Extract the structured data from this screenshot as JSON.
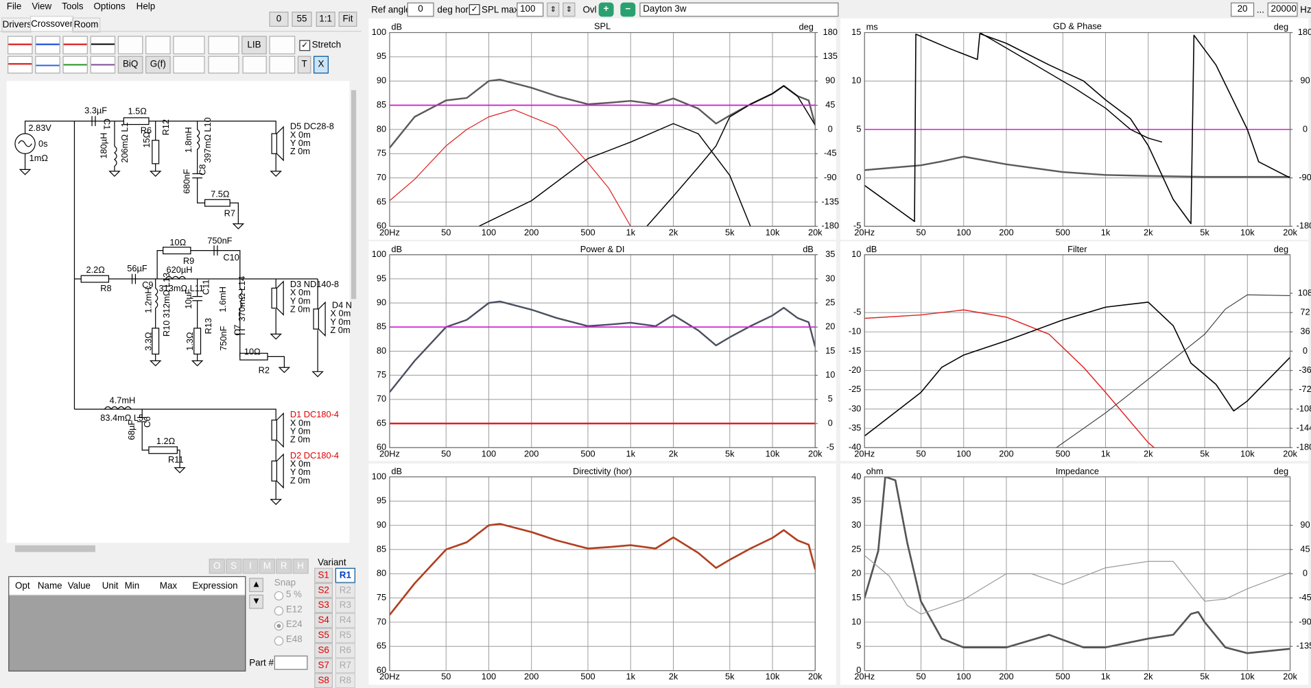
{
  "menu": [
    "File",
    "View",
    "Tools",
    "Options",
    "Help"
  ],
  "tabs": [
    "Drivers",
    "Crossover",
    "Room"
  ],
  "zoom": [
    "0",
    "55",
    "1:1",
    "Fit"
  ],
  "toolbar": {
    "lib": "LIB",
    "biq": "BiQ",
    "gf": "G(f)",
    "t": "T",
    "x": "X",
    "stretch": "Stretch"
  },
  "topbar": {
    "ref_angle_label": "Ref angle",
    "ref_angle": "0",
    "deg_hor": "deg hor",
    "spl_max_label": "SPL max",
    "spl_max": "100",
    "ovl": "Ovl",
    "project": "Dayton 3w",
    "f_min": "20",
    "ellipsis": "...",
    "f_max": "20000",
    "hz": "Hz"
  },
  "optimizer_buttons": [
    "O",
    "S",
    "I",
    "M",
    "R",
    "H"
  ],
  "table_headers": [
    "Opt",
    "Name",
    "Value",
    "Unit",
    "Min",
    "Max",
    "Expression"
  ],
  "snap": {
    "label": "Snap",
    "options": [
      "5 %",
      "E12",
      "E24",
      "E48"
    ]
  },
  "variant": {
    "label": "Variant",
    "s": [
      "S1",
      "S2",
      "S3",
      "S4",
      "S5",
      "S6",
      "S7",
      "S8"
    ],
    "r": [
      "R1",
      "R2",
      "R3",
      "R4",
      "R5",
      "R6",
      "R7",
      "R8"
    ]
  },
  "part_label": "Part #",
  "schematic": {
    "labels": [
      "2.83V",
      "0s",
      "1mΩ",
      "3.3µF",
      "C1",
      "1.5Ω",
      "R6",
      "180µH",
      "206mΩ L1",
      "15Ω",
      "R12",
      "1.8mH",
      "397mΩ L10",
      "C8",
      "680nF",
      "7.5Ω",
      "R7",
      "D5 DC28-8",
      "X 0m",
      "Y 0m",
      "Z 0m",
      "10Ω",
      "R9",
      "750nF",
      "C10",
      "2.2Ω",
      "R8",
      "56µF",
      "C9",
      "620µH",
      "313mΩ L11",
      "C11",
      "10µF",
      "1.6mH",
      "370mΩ L14",
      "1.2mH",
      "R10 312mΩ L13",
      "3.3Ω",
      "1.3Ω",
      "R13",
      "750nF",
      "C7",
      "10Ω",
      "R2",
      "D3 ND140-8",
      "X 0m",
      "Y 0m",
      "Z 0m",
      "D4 N",
      "X 0m",
      "Y 0m",
      "Z 0m",
      "4.7mH",
      "83.4mΩ L5",
      "C6",
      "68µF",
      "1.2Ω",
      "R11",
      "D1 DC180-4",
      "X 0m",
      "Y 0m",
      "Z 0m",
      "D2 DC180-4",
      "X 0m",
      "Y 0m",
      "Z 0m"
    ]
  },
  "plots": [
    {
      "title": "SPL",
      "ylabel": "dB",
      "y2label": "deg",
      "ylim": [
        60,
        100
      ],
      "yticks": [
        60,
        65,
        70,
        75,
        80,
        85,
        90,
        95,
        100
      ],
      "y2lim": [
        -180,
        180
      ],
      "y2ticks": [
        -180,
        -135,
        -90,
        -45,
        0,
        45,
        90,
        135,
        180
      ],
      "xlim": [
        20,
        20000
      ],
      "log_x": true,
      "xticks": [
        {
          "value": 20,
          "label": "20Hz"
        },
        50,
        100,
        200,
        500,
        {
          "value": 1000,
          "label": "1k"
        },
        {
          "value": 2000,
          "label": "2k"
        },
        {
          "value": 5000,
          "label": "5k"
        },
        {
          "value": 10000,
          "label": "10k"
        },
        {
          "value": 20000,
          "label": "20k"
        }
      ],
      "curves": [
        {
          "color": "#5a5a5a",
          "width": 2,
          "x": [
            20,
            30,
            50,
            70,
            100,
            120,
            200,
            300,
            500,
            700,
            1000,
            1500,
            2000,
            3000,
            4000,
            5000,
            7000,
            10000,
            12000,
            15000,
            18000,
            20000
          ],
          "values": [
            76.2,
            82.6,
            86,
            86.5,
            90,
            90.3,
            88.6,
            86.9,
            85.2,
            85.5,
            85.9,
            85.2,
            86.4,
            84.3,
            81.2,
            82.9,
            85.2,
            87.4,
            89,
            86.9,
            86,
            80.9
          ]
        },
        {
          "color": "#e02020",
          "width": 1,
          "x": [
            20,
            30,
            50,
            70,
            100,
            150,
            200,
            300,
            500,
            700,
            1000
          ],
          "values": [
            65.3,
            69.7,
            76.6,
            80,
            82.6,
            84.1,
            82.6,
            80.5,
            73.1,
            67.9,
            60
          ]
        },
        {
          "color": "#000000",
          "width": 1.2,
          "x": [
            85,
            200,
            500,
            1000,
            2000,
            3000,
            5000,
            7000
          ],
          "values": [
            60,
            65.3,
            74,
            77.4,
            81.2,
            79.1,
            70.5,
            60
          ]
        },
        {
          "color": "#000000",
          "width": 1.2,
          "x": [
            1300,
            2000,
            3000,
            4000,
            5000,
            7000,
            10000,
            12000,
            15000,
            20000
          ],
          "values": [
            60,
            66.2,
            72.2,
            76.6,
            82.6,
            85.2,
            87.4,
            89,
            86.9,
            80.9
          ]
        },
        {
          "color": "#d020d0",
          "width": 1.5,
          "x": [
            20,
            20000
          ],
          "values": [
            85,
            85
          ]
        }
      ]
    },
    {
      "title": "GD & Phase",
      "ylabel": "ms",
      "y2label": "deg",
      "ylim": [
        -5,
        15
      ],
      "yticks": [
        -5,
        0,
        5,
        10,
        15
      ],
      "y2lim": [
        -180,
        180
      ],
      "y2ticks": [
        -180,
        -90,
        0,
        90,
        180
      ],
      "xlim": [
        20,
        20000
      ],
      "log_x": true,
      "xticks": [
        {
          "value": 20,
          "label": "20Hz"
        },
        50,
        100,
        200,
        500,
        {
          "value": 1000,
          "label": "1k"
        },
        {
          "value": 2000,
          "label": "2k"
        },
        {
          "value": 5000,
          "label": "5k"
        },
        {
          "value": 10000,
          "label": "10k"
        },
        {
          "value": 20000,
          "label": "20k"
        }
      ],
      "curves": [
        {
          "color": "#5a5a5a",
          "width": 2,
          "x": [
            20,
            50,
            70,
            100,
            200,
            500,
            1000,
            2000,
            5000,
            20000
          ],
          "values": [
            0.8,
            1.3,
            1.7,
            2.2,
            1.4,
            0.6,
            0.3,
            0.2,
            0.1,
            0.1
          ]
        },
        {
          "color": "#d020d0",
          "width": 1.2,
          "x": [
            20,
            20000
          ],
          "values": [
            5,
            5
          ]
        },
        {
          "color": "#000000",
          "width": 1.3,
          "axis": "y2",
          "x": [
            20,
            35,
            45,
            46,
            80,
            125,
            130,
            200,
            400,
            700,
            1000,
            1500,
            2000,
            3000,
            4000,
            4200,
            6000,
            10000,
            12000,
            20000
          ],
          "values": [
            -104,
            -150,
            -171,
            177,
            150,
            130,
            178,
            160,
            120,
            90,
            55,
            20,
            -30,
            -130,
            -175,
            175,
            120,
            0,
            -60,
            -90
          ]
        },
        {
          "color": "#000000",
          "width": 1.2,
          "x": [
            130,
            300,
            600,
            1000,
            1500,
            2000,
            2500
          ],
          "values": [
            15,
            11.9,
            9.3,
            7.2,
            5,
            4.1,
            3.7
          ]
        }
      ]
    },
    {
      "title": "Power & DI",
      "ylabel": "dB",
      "y2label": "dB",
      "ylim": [
        60,
        100
      ],
      "yticks": [
        60,
        65,
        70,
        75,
        80,
        85,
        90,
        95,
        100
      ],
      "y2lim": [
        -5,
        35
      ],
      "y2ticks": [
        -5,
        0,
        5,
        10,
        15,
        20,
        25,
        30,
        35
      ],
      "xlim": [
        20,
        20000
      ],
      "log_x": true,
      "xticks": [
        {
          "value": 20,
          "label": "20Hz"
        },
        50,
        100,
        200,
        500,
        {
          "value": 1000,
          "label": "1k"
        },
        {
          "value": 2000,
          "label": "2k"
        },
        {
          "value": 5000,
          "label": "5k"
        },
        {
          "value": 10000,
          "label": "10k"
        },
        {
          "value": 20000,
          "label": "20k"
        }
      ],
      "curves": [
        {
          "color": "#4a4f60",
          "width": 2,
          "x": [
            20,
            30,
            50,
            70,
            100,
            120,
            200,
            300,
            500,
            700,
            1000,
            1500,
            2000,
            3000,
            4000,
            5000,
            7000,
            10000,
            12000,
            15000,
            18000,
            20000
          ],
          "values": [
            71.5,
            78,
            85,
            86.5,
            90,
            90.3,
            88.6,
            86.9,
            85.2,
            85.5,
            85.9,
            85.2,
            87.5,
            84.3,
            81.2,
            82.9,
            85.2,
            87.4,
            89,
            86.9,
            86,
            80.9
          ]
        },
        {
          "color": "#e02020",
          "width": 2,
          "axis": "y2",
          "x": [
            20,
            20000
          ],
          "values": [
            0,
            0
          ]
        },
        {
          "color": "#d020d0",
          "width": 1.5,
          "x": [
            20,
            20000
          ],
          "values": [
            85,
            85
          ]
        }
      ]
    },
    {
      "title": "Filter",
      "ylabel": "dB",
      "y2label": "deg",
      "ylim": [
        -40,
        10
      ],
      "yticks": [
        -40,
        -35,
        -30,
        -25,
        -20,
        -15,
        -10,
        -5,
        10
      ],
      "y2lim": [
        -180,
        180
      ],
      "y2ticks": [
        -180,
        -144,
        -108,
        -72,
        -36,
        0,
        36,
        72,
        108
      ],
      "xlim": [
        20,
        20000
      ],
      "log_x": true,
      "xticks": [
        {
          "value": 20,
          "label": "20Hz"
        },
        50,
        100,
        200,
        500,
        {
          "value": 1000,
          "label": "1k"
        },
        {
          "value": 2000,
          "label": "2k"
        },
        {
          "value": 5000,
          "label": "5k"
        },
        {
          "value": 10000,
          "label": "10k"
        },
        {
          "value": 20000,
          "label": "20k"
        }
      ],
      "curves": [
        {
          "color": "#e02020",
          "width": 1.2,
          "x": [
            20,
            50,
            100,
            200,
            400,
            700,
            1000,
            2000,
            2200
          ],
          "values": [
            -6.5,
            -5.6,
            -4.3,
            -6.2,
            -10.6,
            -19.2,
            -25.7,
            -38.7,
            -40
          ]
        },
        {
          "color": "#000000",
          "width": 1.3,
          "x": [
            20,
            50,
            70,
            100,
            200,
            500,
            1000,
            2000,
            3000,
            4000,
            6000,
            8000,
            10000,
            20000
          ],
          "values": [
            -37,
            -25.7,
            -19.2,
            -16,
            -12.3,
            -6.9,
            -3.6,
            -2.3,
            -8.4,
            -18.1,
            -23.6,
            -30.5,
            -27.9,
            -16.6
          ]
        },
        {
          "color": "#333333",
          "width": 0.9,
          "x": [
            450,
            1000,
            2000,
            5000,
            7000,
            10000,
            20000
          ],
          "values": [
            -40,
            -31,
            -22.3,
            -10.6,
            -4.1,
            -0.4,
            -0.6
          ]
        }
      ]
    },
    {
      "title": "Directivity (hor)",
      "ylabel": "dB",
      "ylim": [
        60,
        100
      ],
      "yticks": [
        60,
        65,
        70,
        75,
        80,
        85,
        90,
        95,
        100
      ],
      "xlim": [
        20,
        20000
      ],
      "log_x": true,
      "xticks": [
        {
          "value": 20,
          "label": "20Hz"
        },
        50,
        100,
        200,
        500,
        {
          "value": 1000,
          "label": "1k"
        },
        {
          "value": 2000,
          "label": "2k"
        },
        {
          "value": 5000,
          "label": "5k"
        },
        {
          "value": 10000,
          "label": "10k"
        },
        {
          "value": 20000,
          "label": "20k"
        }
      ],
      "curves": [
        {
          "color": "#b04020",
          "width": 2.2,
          "x": [
            20,
            30,
            50,
            70,
            100,
            120,
            200,
            300,
            500,
            700,
            1000,
            1500,
            2000,
            3000,
            4000,
            5000,
            7000,
            10000,
            12000,
            15000,
            18000,
            20000
          ],
          "values": [
            71.5,
            78,
            85,
            86.5,
            90,
            90.3,
            88.6,
            86.9,
            85.2,
            85.5,
            85.9,
            85.2,
            87.5,
            84.3,
            81.2,
            82.9,
            85.2,
            87.4,
            89,
            86.9,
            86,
            80.9
          ]
        }
      ]
    },
    {
      "title": "Impedance",
      "ylabel": "ohm",
      "y2label": "deg",
      "ylim": [
        0,
        40
      ],
      "yticks": [
        0,
        5,
        10,
        15,
        20,
        25,
        30,
        35,
        40
      ],
      "y2lim": [
        -180,
        180
      ],
      "y2ticks": [
        -135,
        -90,
        -45,
        0,
        45,
        90
      ],
      "xlim": [
        20,
        20000
      ],
      "log_x": true,
      "xticks": [
        {
          "value": 20,
          "label": "20Hz"
        },
        50,
        100,
        200,
        500,
        {
          "value": 1000,
          "label": "1k"
        },
        {
          "value": 2000,
          "label": "2k"
        },
        {
          "value": 5000,
          "label": "5k"
        },
        {
          "value": 10000,
          "label": "10k"
        },
        {
          "value": 20000,
          "label": "20k"
        }
      ],
      "curves": [
        {
          "color": "#555555",
          "width": 2.2,
          "x": [
            20,
            25,
            28,
            33,
            40,
            50,
            70,
            100,
            200,
            400,
            700,
            1000,
            2000,
            3000,
            4000,
            4500,
            5000,
            7000,
            10000,
            20000
          ],
          "values": [
            15,
            24.7,
            40,
            39.3,
            26.4,
            14.3,
            6.6,
            4.8,
            4.8,
            7.4,
            4.8,
            4.8,
            6.6,
            7.4,
            11.7,
            12.1,
            10,
            4.8,
            3.6,
            4.5
          ]
        },
        {
          "color": "#999999",
          "width": 1,
          "axis": "y2",
          "x": [
            20,
            30,
            40,
            50,
            100,
            200,
            300,
            500,
            1000,
            2000,
            3000,
            5000,
            7000,
            10000,
            20000
          ],
          "values": [
            34,
            -5,
            -59,
            -75,
            -48,
            0,
            0,
            -20,
            11,
            23,
            23,
            -51,
            -47,
            -28,
            2
          ]
        }
      ]
    }
  ]
}
